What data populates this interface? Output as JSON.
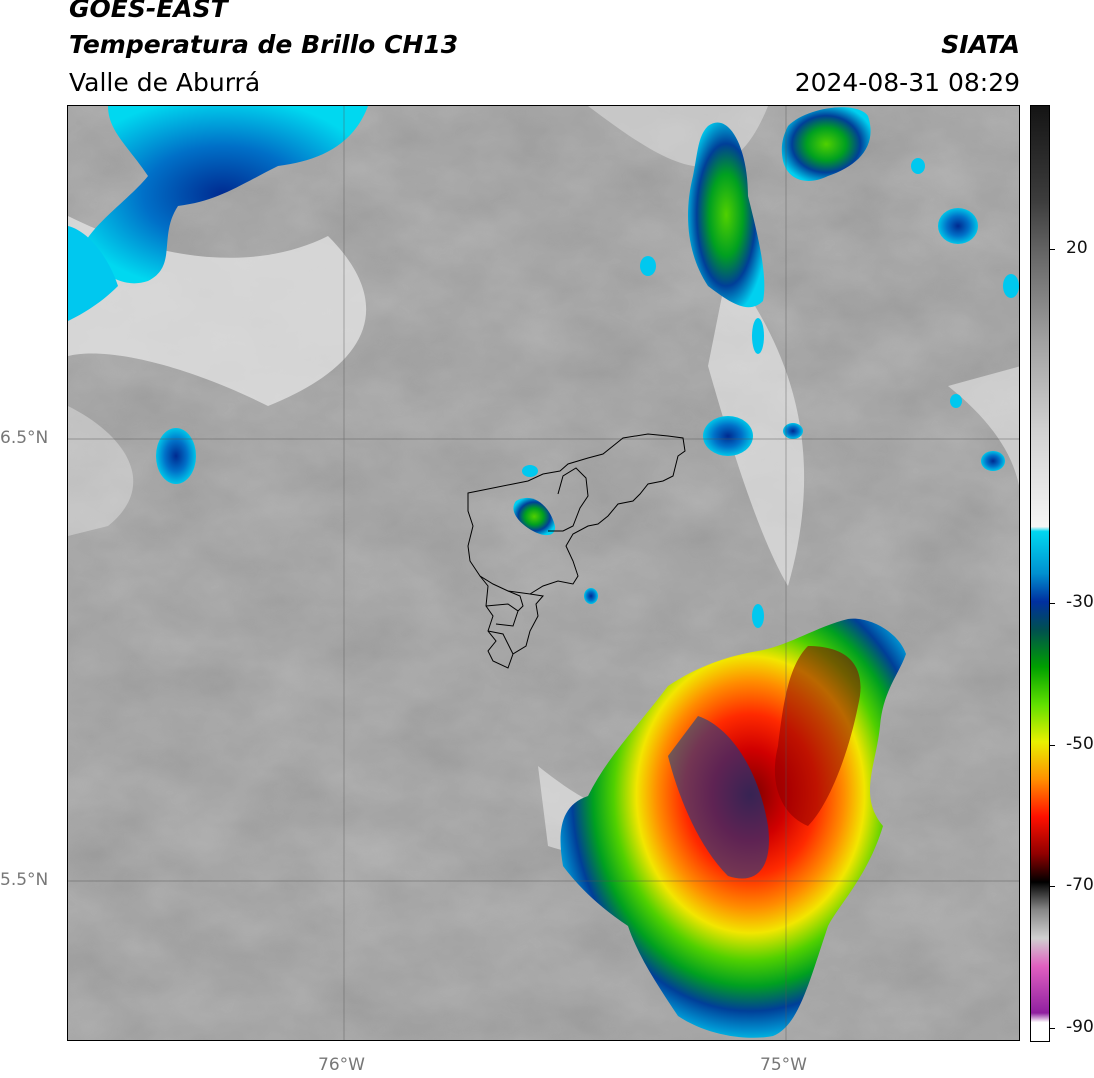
{
  "header": {
    "satellite": "GOES-EAST",
    "product": "Temperatura de Brillo CH13",
    "region": "Valle de Aburrá",
    "agency": "SIATA",
    "datetime": "2024-08-31 08:29"
  },
  "map": {
    "lat_labels": [
      "6.5°N",
      "5.5°N"
    ],
    "lon_labels": [
      "76°W",
      "75°W"
    ]
  },
  "colorbar": {
    "ticks": [
      "20",
      "-30",
      "-50",
      "-70",
      "-90"
    ],
    "stops": [
      "#141414",
      "#3c3c3c",
      "#6e6e6e",
      "#a0a0a0",
      "#d2d2d2",
      "#f5f5f5",
      "#00d8f0",
      "#0090d0",
      "#0030a0",
      "#005050",
      "#00a000",
      "#60e000",
      "#e8f000",
      "#ff9000",
      "#ff1000",
      "#900000",
      "#000000",
      "#888888",
      "#d0d0d0",
      "#e060c0",
      "#9020a0",
      "#ffffff"
    ]
  }
}
